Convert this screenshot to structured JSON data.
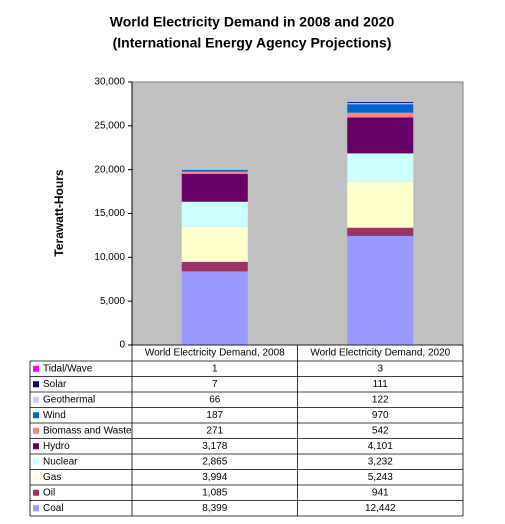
{
  "chart_data": {
    "type": "stacked_bar_with_table",
    "title": "World Electricity Demand in 2008 and 2020",
    "subtitle": "(International Energy Agency Projections)",
    "y_label": "Terawatt-Hours",
    "categories": [
      "World Electricity Demand, 2008",
      "World Electricity Demand, 2020"
    ],
    "series": [
      {
        "name": "Coal",
        "color": "#9999ff",
        "values": [
          8399,
          12442
        ],
        "value_labels": [
          "8,399",
          "12,442"
        ]
      },
      {
        "name": "Oil",
        "color": "#993366",
        "values": [
          1085,
          941
        ],
        "value_labels": [
          "1,085",
          "941"
        ]
      },
      {
        "name": "Gas",
        "color": "#ffffcc",
        "values": [
          3994,
          5243
        ],
        "value_labels": [
          "3,994",
          "5,243"
        ]
      },
      {
        "name": "Nuclear",
        "color": "#ccffff",
        "values": [
          2865,
          3232
        ],
        "value_labels": [
          "2,865",
          "3,232"
        ]
      },
      {
        "name": "Hydro",
        "color": "#660066",
        "values": [
          3178,
          4101
        ],
        "value_labels": [
          "3,178",
          "4,101"
        ]
      },
      {
        "name": "Biomass and Waste",
        "color": "#ff8080",
        "values": [
          271,
          542
        ],
        "value_labels": [
          "271",
          "542"
        ]
      },
      {
        "name": "Wind",
        "color": "#0066cc",
        "values": [
          187,
          970
        ],
        "value_labels": [
          "187",
          "970"
        ]
      },
      {
        "name": "Geothermal",
        "color": "#ccccff",
        "values": [
          66,
          122
        ],
        "value_labels": [
          "66",
          "122"
        ]
      },
      {
        "name": "Solar",
        "color": "#000080",
        "values": [
          7,
          111
        ],
        "value_labels": [
          "7",
          "111"
        ]
      },
      {
        "name": "Tidal/Wave",
        "color": "#ff00ff",
        "values": [
          1,
          3
        ],
        "value_labels": [
          "1",
          "3"
        ]
      }
    ],
    "ylim": [
      0,
      30000
    ],
    "yticks": [
      0,
      {
        "value": 5000,
        "label": "5,000"
      },
      {
        "value": 10000,
        "label": "10,000"
      },
      {
        "value": 15000,
        "label": "15,000"
      },
      {
        "value": 20000,
        "label": "20,000"
      },
      {
        "value": 25000,
        "label": "25,000"
      },
      {
        "value": 30000,
        "label": "30,000"
      }
    ],
    "plot_background": "#c0c0c0"
  }
}
